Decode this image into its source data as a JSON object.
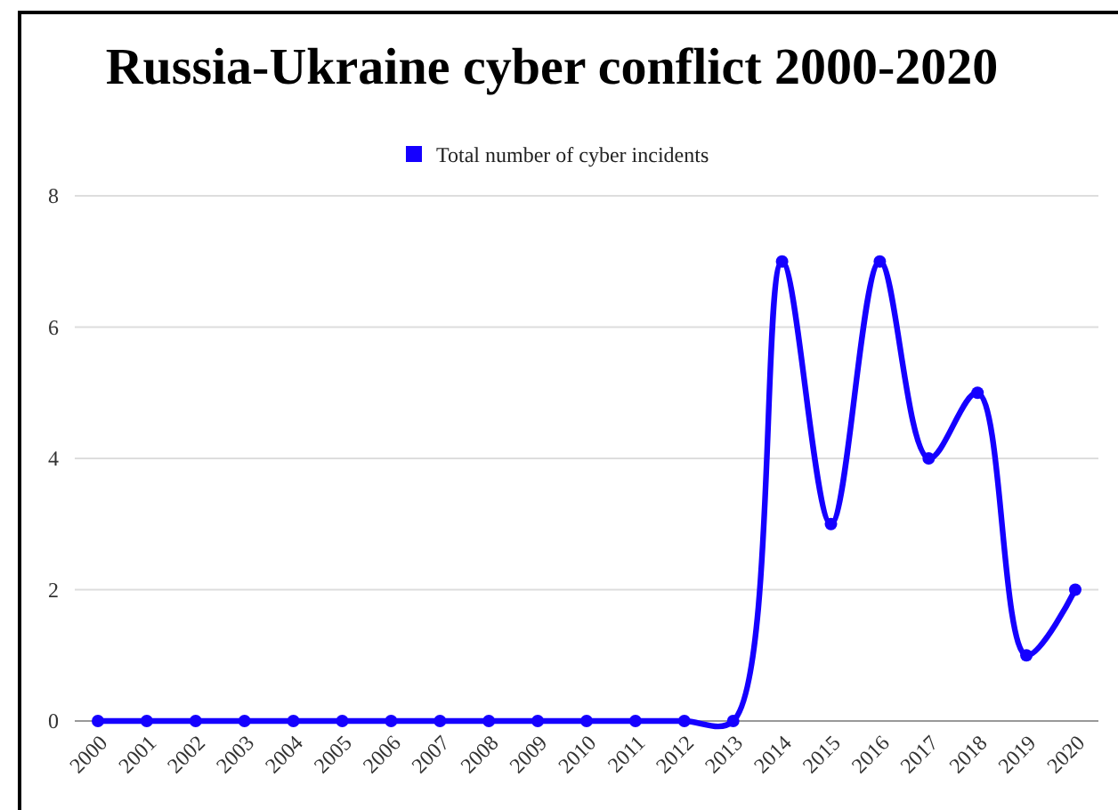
{
  "chart_data": {
    "type": "line",
    "title": "Russia-Ukraine cyber conflict 2000-2020",
    "categories": [
      "2000",
      "2001",
      "2002",
      "2003",
      "2004",
      "2005",
      "2006",
      "2007",
      "2008",
      "2009",
      "2010",
      "2011",
      "2012",
      "2013",
      "2014",
      "2015",
      "2016",
      "2017",
      "2018",
      "2019",
      "2020"
    ],
    "series": [
      {
        "name": "Total number of cyber incidents",
        "color": "#1500ff",
        "values": [
          0,
          0,
          0,
          0,
          0,
          0,
          0,
          0,
          0,
          0,
          0,
          0,
          0,
          0,
          7,
          3,
          7,
          4,
          5,
          1,
          2
        ]
      }
    ],
    "ylim": [
      0,
      8
    ],
    "yticks": [
      0,
      2,
      4,
      6,
      8
    ],
    "grid": "y",
    "legend": "top",
    "marker": "circle",
    "line_style": "solid"
  }
}
